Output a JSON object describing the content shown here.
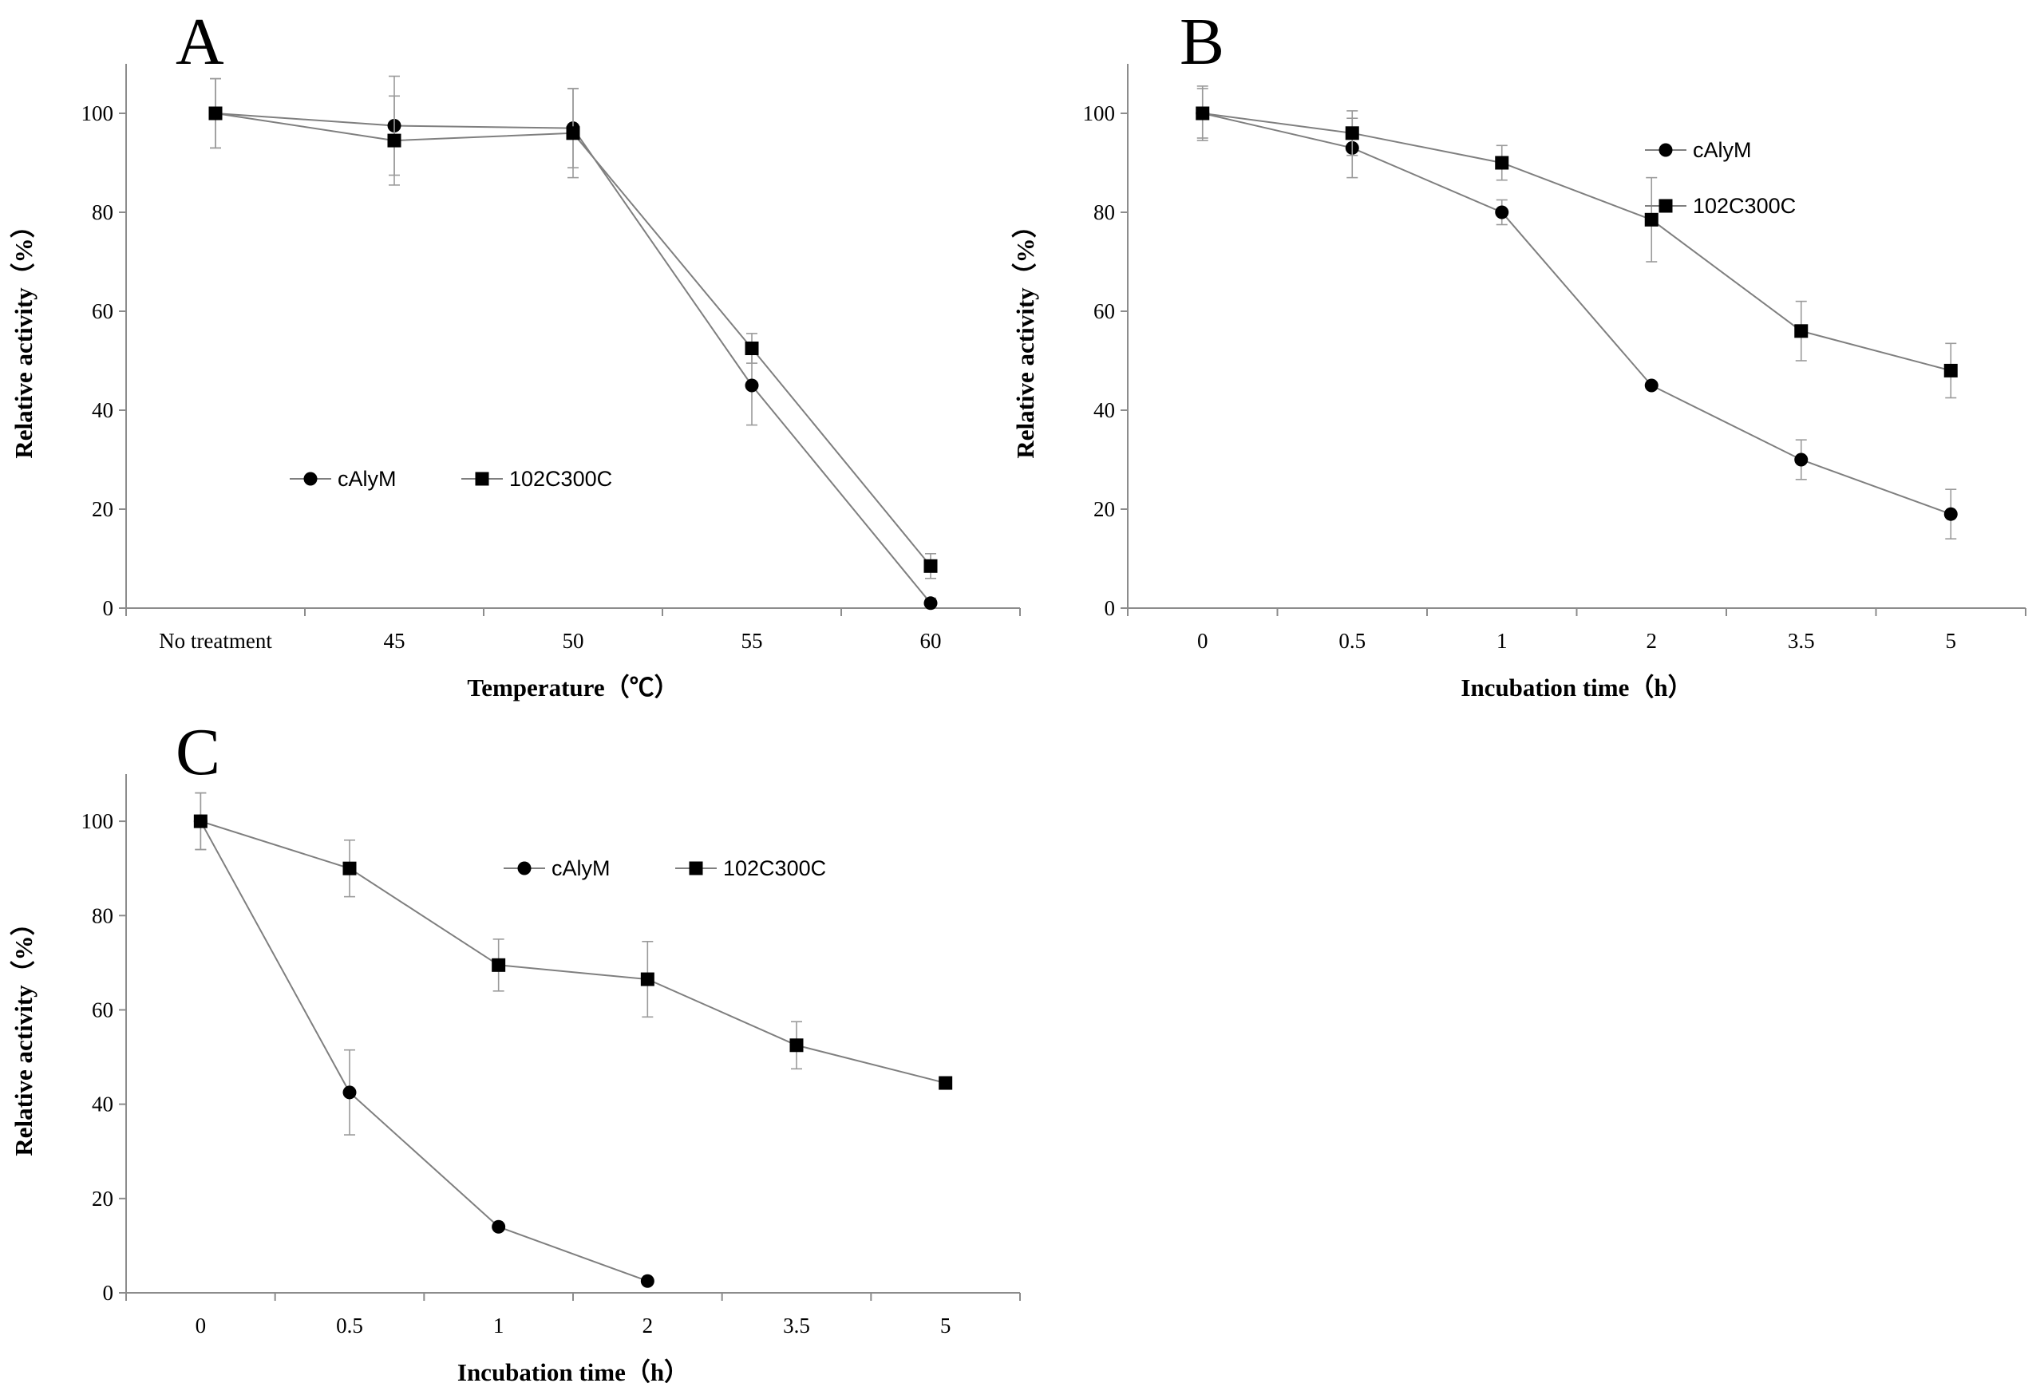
{
  "chart_data": [
    {
      "panel": "A",
      "type": "line",
      "title": "",
      "xlabel": "Temperature（℃）",
      "ylabel": "Relative activity（%）",
      "categories": [
        "No treatment",
        "45",
        "50",
        "55",
        "60"
      ],
      "ylim": [
        0,
        110
      ],
      "yticks": [
        0,
        20,
        40,
        60,
        80,
        100
      ],
      "legend_position": "center-left",
      "series": [
        {
          "name": "cAlyM",
          "marker": "circle",
          "values": [
            100,
            97.5,
            97,
            45,
            1
          ],
          "errors": [
            7,
            10,
            8,
            8,
            1
          ]
        },
        {
          "name": "102C300C",
          "marker": "square",
          "values": [
            100,
            94.5,
            96,
            52.5,
            8.5
          ],
          "errors": [
            7,
            9,
            9,
            3,
            2.5
          ]
        }
      ]
    },
    {
      "panel": "B",
      "type": "line",
      "title": "",
      "xlabel": "Incubation time（h）",
      "ylabel": "Relative activity（%）",
      "categories": [
        "0",
        "0.5",
        "1",
        "2",
        "3.5",
        "5"
      ],
      "ylim": [
        0,
        110
      ],
      "yticks": [
        0,
        20,
        40,
        60,
        80,
        100
      ],
      "legend_position": "top-right",
      "series": [
        {
          "name": "cAlyM",
          "marker": "circle",
          "values": [
            100,
            93,
            80,
            45,
            30,
            19
          ],
          "errors": [
            5,
            6,
            2.5,
            0,
            4,
            5
          ]
        },
        {
          "name": "102C300C",
          "marker": "square",
          "values": [
            100,
            96,
            90,
            78.5,
            56,
            48
          ],
          "errors": [
            5.5,
            4.5,
            3.5,
            8.5,
            6,
            5.5
          ]
        }
      ]
    },
    {
      "panel": "C",
      "type": "line",
      "title": "",
      "xlabel": "Incubation time（h）",
      "ylabel": "Relative activity（%）",
      "categories": [
        "0",
        "0.5",
        "1",
        "2",
        "3.5",
        "5"
      ],
      "ylim": [
        0,
        110
      ],
      "yticks": [
        0,
        20,
        40,
        60,
        80,
        100
      ],
      "legend_position": "top-center",
      "series": [
        {
          "name": "cAlyM",
          "marker": "circle",
          "values": [
            100,
            42.5,
            14,
            2.5,
            null,
            null
          ],
          "errors": [
            6,
            9,
            0,
            0,
            null,
            null
          ]
        },
        {
          "name": "102C300C",
          "marker": "square",
          "values": [
            100,
            90,
            69.5,
            66.5,
            52.5,
            44.5
          ],
          "errors": [
            6,
            6,
            5.5,
            8,
            5,
            0
          ]
        }
      ]
    }
  ]
}
